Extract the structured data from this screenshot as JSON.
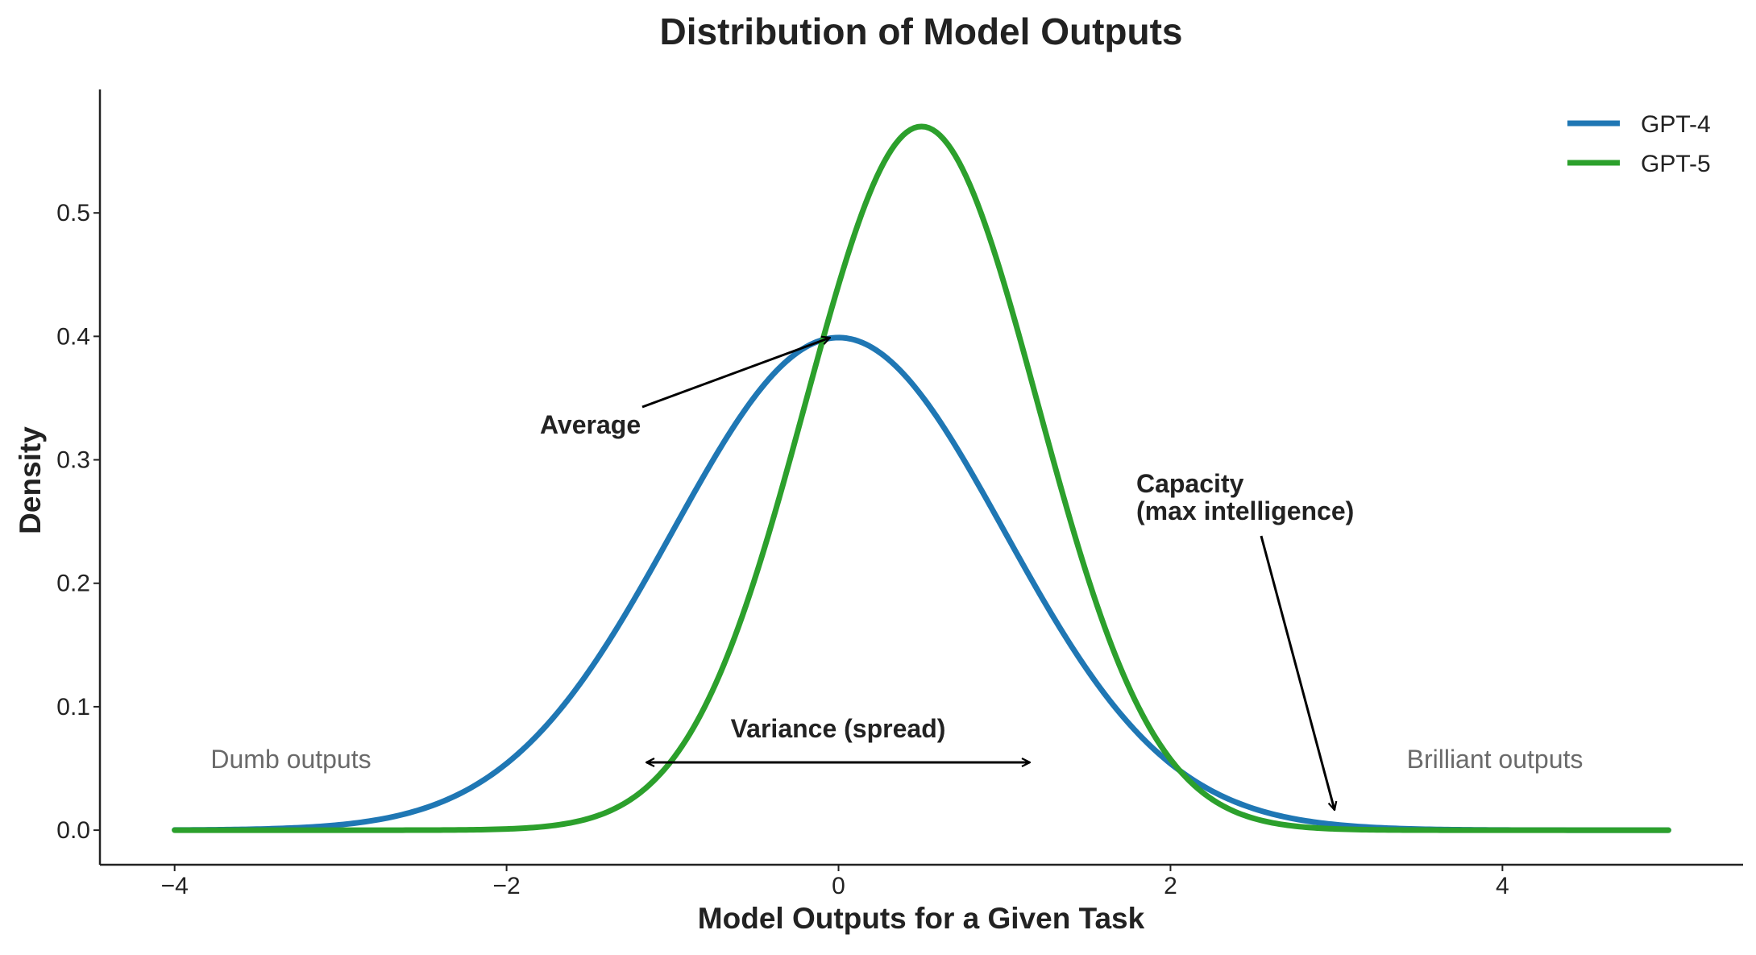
{
  "chart_data": {
    "type": "line",
    "title": "Distribution of Model Outputs",
    "xlabel": "Model Outputs for a Given Task",
    "ylabel": "Density",
    "xlim": [
      -4.45,
      5.45
    ],
    "ylim": [
      -0.028,
      0.6
    ],
    "x_ticks": [
      -4,
      -2,
      0,
      2,
      4
    ],
    "x_tick_labels": [
      "−4",
      "−2",
      "0",
      "2",
      "4"
    ],
    "y_ticks": [
      0.0,
      0.1,
      0.2,
      0.3,
      0.4,
      0.5
    ],
    "y_tick_labels": [
      "0.0",
      "0.1",
      "0.2",
      "0.3",
      "0.4",
      "0.5"
    ],
    "grid": false,
    "legend_position": "top-right",
    "x_range": [
      -4,
      5
    ],
    "series": [
      {
        "name": "GPT-4",
        "color": "#1f77b4",
        "mean": 0,
        "std": 1.0,
        "peak_density": 0.399
      },
      {
        "name": "GPT-5",
        "color": "#2ca02c",
        "mean": 0.5,
        "std": 0.7,
        "peak_density": 0.57
      }
    ],
    "annotations": [
      {
        "id": "average",
        "text": "Average",
        "arrow_target": [
          -0.05,
          0.4
        ]
      },
      {
        "id": "capacity",
        "lines": [
          "Capacity",
          "(max intelligence)"
        ],
        "arrow_target": [
          3.0,
          0.015
        ]
      },
      {
        "id": "variance",
        "text": "Variance (spread)",
        "arrow_from": [
          -1.2,
          0.055
        ],
        "arrow_to": [
          1.2,
          0.055
        ]
      },
      {
        "id": "dumb",
        "text": "Dumb outputs"
      },
      {
        "id": "brilliant",
        "text": "Brilliant outputs"
      }
    ]
  }
}
